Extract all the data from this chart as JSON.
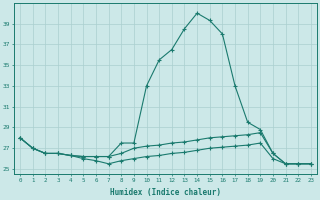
{
  "xlabel": "Humidex (Indice chaleur)",
  "x_values": [
    0,
    1,
    2,
    3,
    4,
    5,
    6,
    7,
    8,
    9,
    10,
    11,
    12,
    13,
    14,
    15,
    16,
    17,
    18,
    19,
    20,
    21,
    22,
    23
  ],
  "series": [
    [
      28.0,
      27.0,
      26.5,
      26.5,
      26.3,
      26.2,
      26.2,
      26.2,
      26.5,
      27.0,
      27.2,
      27.3,
      27.5,
      27.6,
      27.8,
      28.0,
      28.1,
      28.2,
      28.3,
      28.5,
      26.5,
      25.5,
      25.5,
      25.5
    ],
    [
      28.0,
      27.0,
      26.5,
      26.5,
      26.3,
      26.0,
      25.8,
      25.5,
      25.8,
      26.0,
      26.2,
      26.3,
      26.5,
      26.6,
      26.8,
      27.0,
      27.1,
      27.2,
      27.3,
      27.5,
      26.0,
      25.5,
      25.5,
      25.5
    ],
    [
      28.0,
      27.0,
      26.5,
      26.5,
      26.3,
      26.2,
      26.2,
      26.2,
      27.5,
      27.5,
      33.0,
      35.5,
      36.5,
      38.5,
      40.0,
      39.3,
      38.0,
      33.0,
      29.5,
      28.8,
      26.5,
      25.5,
      25.5,
      25.5
    ]
  ],
  "line_color": "#1a7a6e",
  "bg_color": "#cce8e8",
  "grid_color": "#aacfcf",
  "ylim": [
    24.5,
    41
  ],
  "yticks": [
    25,
    27,
    29,
    31,
    33,
    35,
    37,
    39
  ],
  "xlim": [
    -0.5,
    23.5
  ]
}
